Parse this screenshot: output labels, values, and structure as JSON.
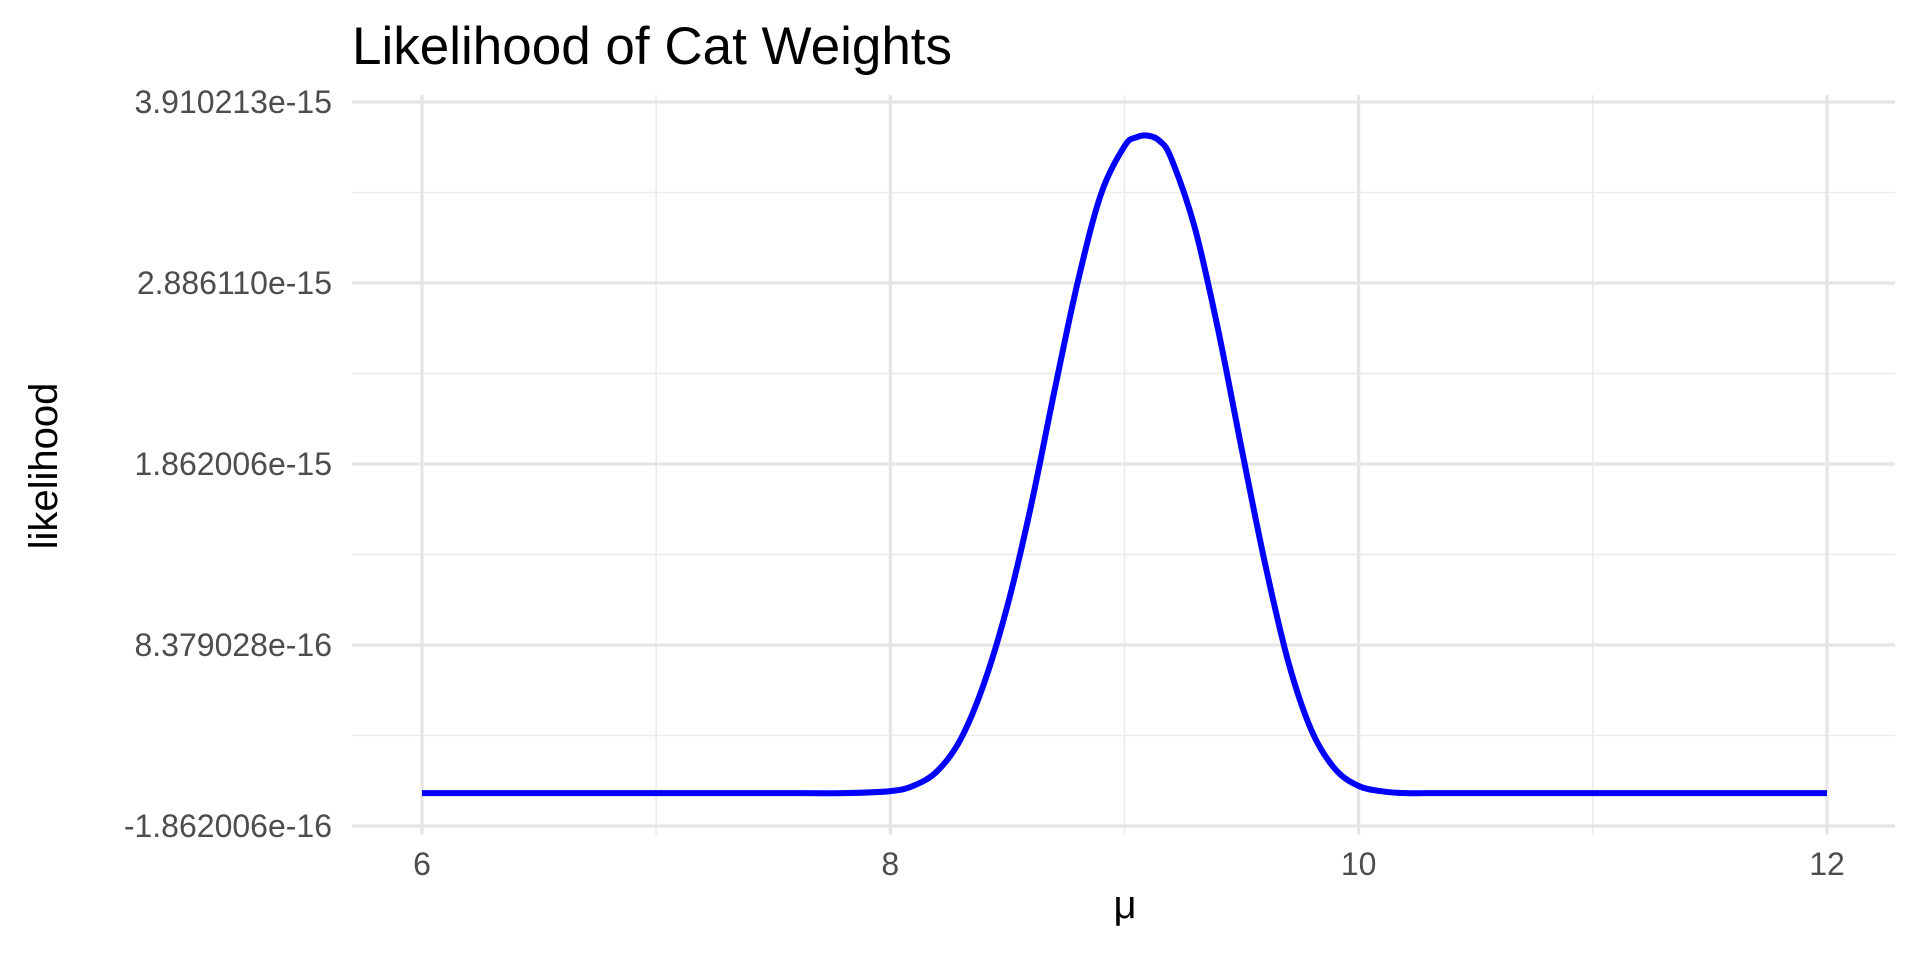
{
  "chart_data": {
    "type": "line",
    "title": "Likelihood of Cat Weights",
    "xlabel": "μ",
    "ylabel": "likelihood",
    "xlim": [
      6,
      12
    ],
    "ylim": [
      -1.862006e-16,
      3.910213e-15
    ],
    "x_ticks": [
      6,
      8,
      10,
      12
    ],
    "x_tick_labels": [
      "6",
      "8",
      "10",
      "12"
    ],
    "y_ticks": [
      -1.862006e-16,
      8.379028e-16,
      1.862006e-15,
      2.88611e-15,
      3.910213e-15
    ],
    "y_tick_labels": [
      "-1.862006e-16",
      "8.379028e-16",
      "1.862006e-15",
      "2.886110e-15",
      "3.910213e-15"
    ],
    "grid": true,
    "legend": "none",
    "series": [
      {
        "color": "#0000ff",
        "x": [
          6.0,
          7.0,
          7.5,
          7.8,
          8.0,
          8.1,
          8.2,
          8.3,
          8.4,
          8.5,
          8.6,
          8.7,
          8.8,
          8.9,
          9.0,
          9.05,
          9.1,
          9.15,
          9.2,
          9.3,
          9.4,
          9.5,
          9.6,
          9.7,
          9.8,
          9.9,
          10.0,
          10.1,
          10.2,
          10.4,
          11.0,
          12.0
        ],
        "y": [
          0.0,
          0.0,
          0.0,
          0.0,
          1.1e-17,
          4.2e-17,
          1.24e-16,
          3.04e-16,
          6.2e-16,
          1.06e-15,
          1.62e-15,
          2.27e-15,
          2.89e-15,
          3.39e-15,
          3.66e-15,
          3.71e-15,
          3.72e-15,
          3.69e-15,
          3.59e-15,
          3.2e-15,
          2.62e-15,
          1.95e-15,
          1.3e-15,
          7.4e-16,
          3.5e-16,
          1.35e-16,
          4e-17,
          1e-17,
          0.0,
          0.0,
          0.0,
          0.0
        ]
      }
    ]
  }
}
